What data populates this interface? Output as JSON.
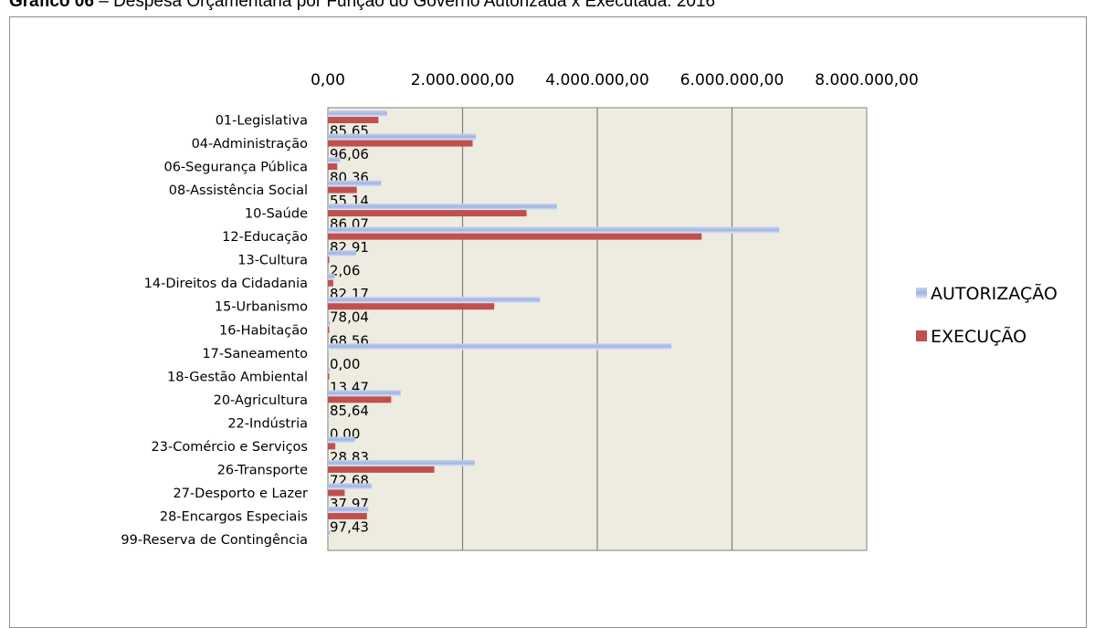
{
  "heading": {
    "label": "Gráfico 06",
    "text": "– Despesa Orçamentária por Função do Governo Autorizada x Executada: 2016"
  },
  "chart_data": {
    "type": "bar",
    "orientation": "horizontal",
    "title": "",
    "xlabel": "",
    "ylabel": "",
    "xlim": [
      0,
      8000000
    ],
    "x_axis_position": "top",
    "x_tick_labels": [
      "0,00",
      "2.000.000,00",
      "4.000.000,00",
      "6.000.000,00",
      "8.000.000,00"
    ],
    "x_tick_values": [
      0,
      2000000,
      4000000,
      6000000,
      8000000
    ],
    "grid": true,
    "legend_position": "right",
    "categories": [
      "01-Legislativa",
      "04-Administração",
      "06-Segurança Pública",
      "08-Assistência Social",
      "10-Saúde",
      "12-Educação",
      "13-Cultura",
      "14-Direitos da Cidadania",
      "15-Urbanismo",
      "16-Habitação",
      "17-Saneamento",
      "18-Gestão Ambiental",
      "20-Agricultura",
      "22-Indústria",
      "23-Comércio e Serviços",
      "26-Transporte",
      "27-Desporto e Lazer",
      "28-Encargos Especiais",
      "99-Reserva de Contingência"
    ],
    "series": [
      {
        "name": "AUTORIZAÇÃO",
        "color": "#9fb4e0",
        "values": [
          880000,
          2200000,
          180000,
          790000,
          3400000,
          6700000,
          420000,
          100000,
          3150000,
          30000,
          5100000,
          30000,
          1080000,
          10000,
          400000,
          2180000,
          650000,
          600000,
          30000
        ]
      },
      {
        "name": "EXECUÇÃO",
        "color": "#c0504d",
        "values": [
          750000,
          2150000,
          140000,
          430000,
          2950000,
          5550000,
          10000,
          80000,
          2470000,
          20000,
          0,
          4000,
          940000,
          0,
          110000,
          1580000,
          250000,
          580000,
          0
        ]
      }
    ],
    "data_labels": [
      "85,65",
      "96,06",
      "80,36",
      "55,14",
      "86,07",
      "82,91",
      "2,06",
      "82,17",
      "78,04",
      "68,56",
      "0,00",
      "13,47",
      "85,64",
      "0,00",
      "28,83",
      "72,68",
      "37,97",
      "97,43",
      ""
    ],
    "colors": {
      "plot_background": "#eeece1",
      "gridline": "#808080"
    }
  }
}
